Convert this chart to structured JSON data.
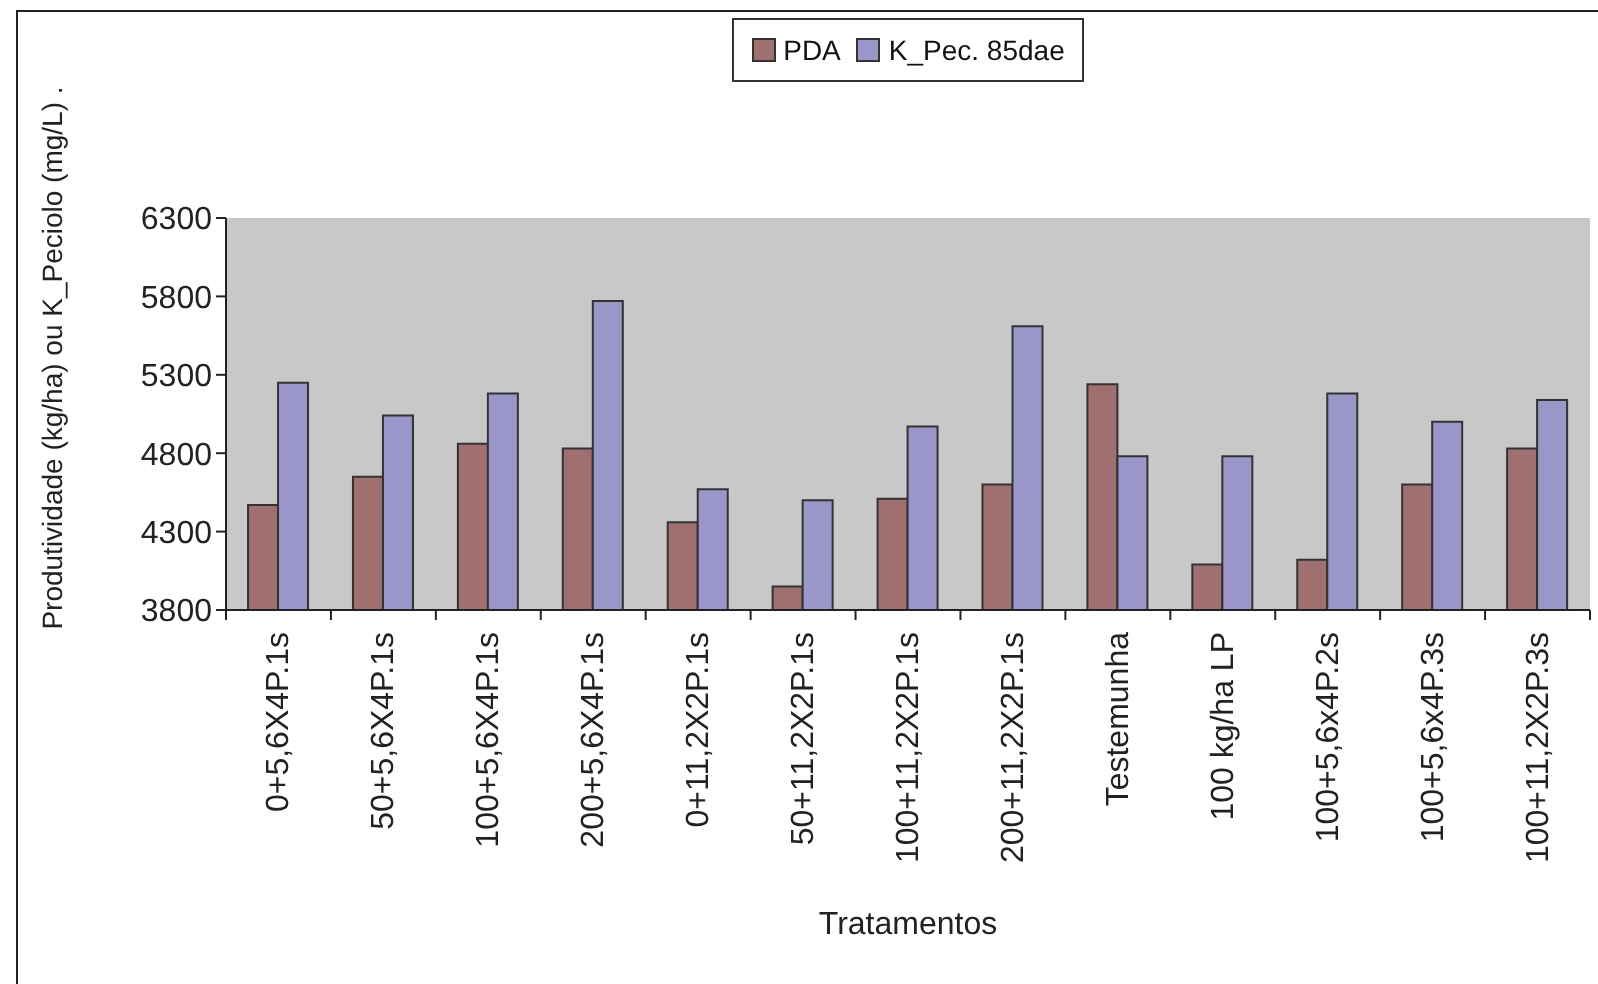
{
  "chart_data": {
    "type": "bar",
    "xlabel": "Tratamentos",
    "ylabel": "Produtividade (kg/ha) ou K_Peciolo (mg/L) .",
    "categories": [
      "0+5,6X4P.1s",
      "50+5,6X4P.1s",
      "100+5,6X4P.1s",
      "200+5,6X4P.1s",
      "0+11,2X2P.1s",
      "50+11,2X2P.1s",
      "100+11,2X2P.1s",
      "200+11,2X2P.1s",
      "Testemunha",
      "100 kg/ha LP",
      "100+5,6x4P.2s",
      "100+5,6x4P.3s",
      "100+11,2X2P.3s"
    ],
    "series": [
      {
        "name": "PDA",
        "color": "#a07070",
        "values": [
          4470,
          4650,
          4860,
          4830,
          4360,
          3950,
          4510,
          4600,
          5240,
          4090,
          4120,
          4600,
          4830
        ]
      },
      {
        "name": "K_Pec. 85dae",
        "color": "#9b96c9",
        "values": [
          5250,
          5040,
          5180,
          5770,
          4570,
          4500,
          4970,
          5610,
          4780,
          4780,
          5180,
          5000,
          5140
        ]
      }
    ],
    "ylim": [
      3800,
      6300
    ],
    "yticks": [
      3800,
      4300,
      4800,
      5300,
      5800,
      6300
    ],
    "legend": "top",
    "grid": false
  }
}
